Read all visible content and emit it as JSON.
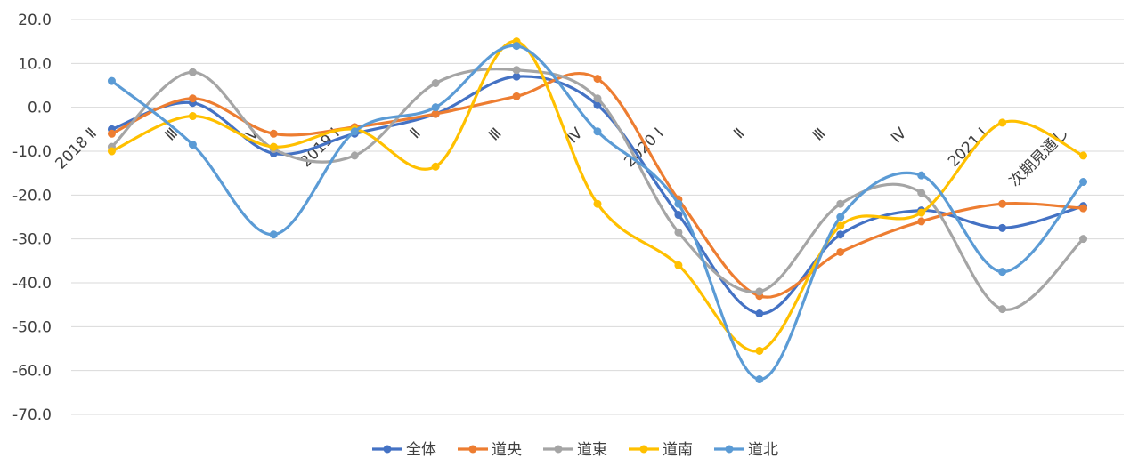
{
  "chart_data": {
    "type": "line",
    "smooth": true,
    "title": "",
    "xlabel": "",
    "ylabel": "",
    "ylim": [
      -70,
      20
    ],
    "ytick_step": 10,
    "ytick_labels": [
      "20.0",
      "10.0",
      "0.0",
      "-10.0",
      "-20.0",
      "-30.0",
      "-40.0",
      "-50.0",
      "-60.0",
      "-70.0"
    ],
    "grid": "horizontal",
    "legend_position": "bottom",
    "categories": [
      "2018 Ⅱ",
      "Ⅲ",
      "Ⅳ",
      "2019 Ⅰ",
      "Ⅱ",
      "Ⅲ",
      "Ⅳ",
      "2020 Ⅰ",
      "Ⅱ",
      "Ⅲ",
      "Ⅳ",
      "2021 Ⅰ",
      "次期見通し"
    ],
    "series": [
      {
        "name": "全体",
        "color": "#4472C4",
        "values": [
          -5.0,
          1.0,
          -10.5,
          -6.0,
          -1.5,
          7.0,
          0.5,
          -24.5,
          -47.0,
          -29.0,
          -23.5,
          -27.5,
          -22.5
        ]
      },
      {
        "name": "道央",
        "color": "#ED7D31",
        "values": [
          -6.0,
          2.0,
          -6.0,
          -4.5,
          -1.5,
          2.5,
          6.5,
          -21.0,
          -43.0,
          -33.0,
          -26.0,
          -22.0,
          -23.0
        ]
      },
      {
        "name": "道東",
        "color": "#A5A5A5",
        "values": [
          -9.0,
          8.0,
          -9.5,
          -11.0,
          5.5,
          8.5,
          2.0,
          -28.5,
          -42.0,
          -22.0,
          -19.5,
          -46.0,
          -30.0
        ]
      },
      {
        "name": "道南",
        "color": "#FFC000",
        "values": [
          -10.0,
          -2.0,
          -9.0,
          -5.0,
          -13.5,
          15.0,
          -22.0,
          -36.0,
          -55.5,
          -27.0,
          -24.0,
          -3.5,
          -11.0
        ]
      },
      {
        "name": "道北",
        "color": "#5B9BD5",
        "values": [
          6.0,
          -8.5,
          -29.0,
          -5.5,
          0.0,
          14.0,
          -5.5,
          -22.0,
          -62.0,
          -25.0,
          -15.5,
          -37.5,
          -17.0
        ]
      }
    ]
  }
}
